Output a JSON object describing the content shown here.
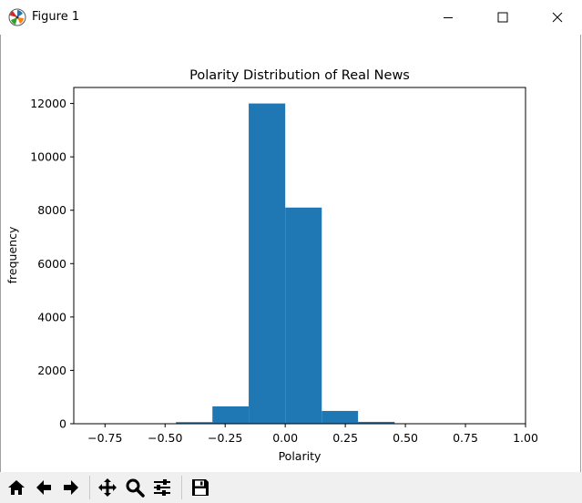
{
  "window": {
    "title": "Figure 1",
    "icon": "matplotlib-logo-icon",
    "controls": [
      "minimize-icon",
      "maximize-icon",
      "close-icon"
    ]
  },
  "toolbar": {
    "buttons": [
      "home-icon",
      "back-arrow-icon",
      "forward-arrow-icon",
      "pan-icon",
      "zoom-icon",
      "configure-subplots-icon",
      "save-icon"
    ]
  },
  "chart_data": {
    "type": "bar",
    "title": "Polarity Distribution of Real News",
    "xlabel": "Polarity",
    "ylabel": "frequency",
    "bar_color": "#1f77b4",
    "bins": [
      [
        -0.455,
        -0.303,
        60
      ],
      [
        -0.303,
        -0.152,
        650
      ],
      [
        -0.152,
        0.0,
        12000
      ],
      [
        0.0,
        0.152,
        8100
      ],
      [
        0.152,
        0.303,
        480
      ],
      [
        0.303,
        0.455,
        70
      ],
      [
        0.455,
        0.607,
        10
      ]
    ],
    "xlim": [
      -0.88,
      1.0
    ],
    "ylim": [
      0,
      12600
    ],
    "xticks": [
      -0.75,
      -0.5,
      -0.25,
      0.0,
      0.25,
      0.5,
      0.75,
      1.0
    ],
    "xtick_labels": [
      "−0.75",
      "−0.50",
      "−0.25",
      "0.00",
      "0.25",
      "0.50",
      "0.75",
      "1.00"
    ],
    "yticks": [
      0,
      2000,
      4000,
      6000,
      8000,
      10000,
      12000
    ],
    "ytick_labels": [
      "0",
      "2000",
      "4000",
      "6000",
      "8000",
      "10000",
      "12000"
    ],
    "grid": false,
    "legend": "none"
  }
}
